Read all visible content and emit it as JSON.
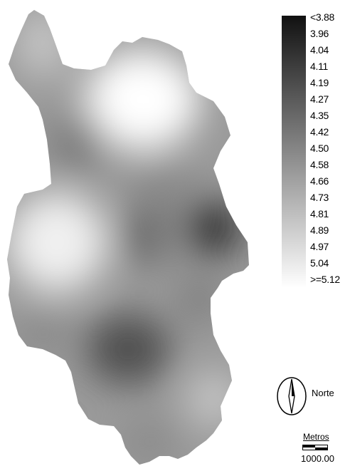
{
  "legend": {
    "title": "",
    "labels": [
      "<3.88",
      "3.96",
      "4.04",
      "4.11",
      "4.19",
      "4.27",
      "4.35",
      "4.42",
      "4.50",
      "4.58",
      "4.66",
      "4.73",
      "4.81",
      "4.89",
      "4.97",
      "5.04",
      ">=5.12"
    ],
    "color_dark": "#111111",
    "color_light": "#ffffff"
  },
  "north_arrow": {
    "label": "Norte",
    "icon": "north-arrow-icon"
  },
  "scale": {
    "title": "Metros",
    "value": "1000.00"
  },
  "map": {
    "fill_light": "#f4f4f4",
    "fill_mid": "#9a9a9a",
    "fill_dark": "#3a3a3a"
  }
}
